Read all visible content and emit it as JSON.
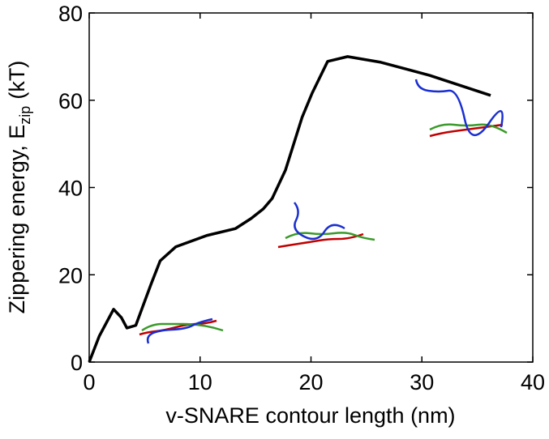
{
  "chart_data": {
    "type": "line",
    "xlabel": "v-SNARE contour length (nm)",
    "ylabel": [
      "Zippering energy, E",
      "zip",
      "(kT)"
    ],
    "x": [
      0,
      0.9,
      2.2,
      2.9,
      3.4,
      4.2,
      5.0,
      5.6,
      6.4,
      7.8,
      10.6,
      13.2,
      14.6,
      15.7,
      16.5,
      17.7,
      19.2,
      20.1,
      21.5,
      23.3,
      26.3,
      30.7,
      36.2
    ],
    "series": [
      {
        "color": "#000000",
        "values": [
          0,
          5.9,
          12.1,
          10.2,
          7.8,
          8.4,
          13.9,
          18.0,
          23.2,
          26.4,
          29.0,
          30.6,
          32.9,
          35.1,
          37.5,
          44.0,
          56.1,
          61.6,
          68.9,
          70.0,
          68.7,
          65.7,
          61.1
        ]
      }
    ],
    "xlim": [
      0,
      40
    ],
    "xticks": [
      0,
      10,
      20,
      30,
      40
    ],
    "ylim": [
      0,
      80
    ],
    "yticks": [
      0,
      20,
      40,
      60,
      80
    ]
  }
}
